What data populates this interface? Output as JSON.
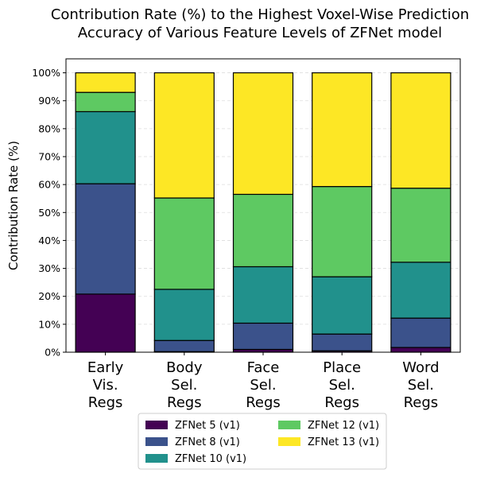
{
  "chart_data": {
    "type": "bar",
    "stacked": true,
    "title": [
      "Contribution Rate (%) to the Highest Voxel-Wise Prediction",
      "Accuracy of Various Feature Levels of ZFNet model"
    ],
    "xlabel": "",
    "ylabel": "Contribution Rate (%)",
    "ylim": [
      0,
      105
    ],
    "yticks": [
      0,
      10,
      20,
      30,
      40,
      50,
      60,
      70,
      80,
      90,
      100
    ],
    "ytick_labels": [
      "0%",
      "10%",
      "20%",
      "30%",
      "40%",
      "50%",
      "60%",
      "70%",
      "80%",
      "90%",
      "100%"
    ],
    "categories": [
      [
        "Early",
        "Vis.",
        "Regs"
      ],
      [
        "Body",
        "Sel.",
        "Regs"
      ],
      [
        "Face",
        "Sel.",
        "Regs"
      ],
      [
        "Place",
        "Sel.",
        "Regs"
      ],
      [
        "Word",
        "Sel.",
        "Regs"
      ]
    ],
    "grid": "y",
    "legend_position": "bottom-center",
    "legend_columns": 2,
    "series": [
      {
        "name": "ZFNet 5 (v1)",
        "color": "#440154",
        "values": [
          20.8,
          0.2,
          1.0,
          0.5,
          1.7
        ]
      },
      {
        "name": "ZFNet 8 (v1)",
        "color": "#3b528b",
        "values": [
          39.5,
          4.0,
          9.4,
          6.0,
          10.5
        ]
      },
      {
        "name": "ZFNet 10 (v1)",
        "color": "#21918c",
        "values": [
          25.8,
          18.3,
          20.2,
          20.5,
          20.0
        ]
      },
      {
        "name": "ZFNet 12 (v1)",
        "color": "#5ec962",
        "values": [
          6.9,
          32.7,
          25.9,
          32.3,
          26.5
        ]
      },
      {
        "name": "ZFNet 13 (v1)",
        "color": "#fde725",
        "values": [
          7.0,
          44.8,
          43.5,
          40.7,
          41.3
        ]
      }
    ]
  }
}
